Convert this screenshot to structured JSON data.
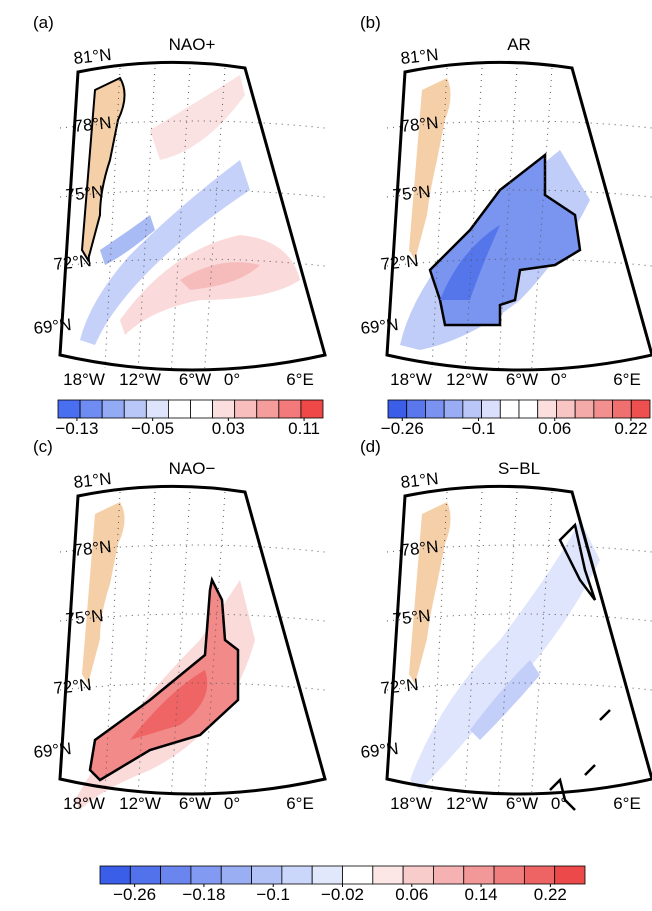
{
  "panels": [
    {
      "label": "(a)",
      "title": "NAO+",
      "lat_labels": [
        "81°N",
        "78°N",
        "75°N",
        "72°N",
        "69°N"
      ],
      "lon_labels": [
        "18°W",
        "12°W",
        "6°W",
        "0°",
        "6°E"
      ]
    },
    {
      "label": "(b)",
      "title": "AR",
      "lat_labels": [
        "81°N",
        "78°N",
        "75°N",
        "72°N",
        "69°N"
      ],
      "lon_labels": [
        "18°W",
        "12°W",
        "6°W",
        "0°",
        "6°E"
      ]
    },
    {
      "label": "(c)",
      "title": "NAO−",
      "lat_labels": [
        "81°N",
        "78°N",
        "75°N",
        "72°N",
        "69°N"
      ],
      "lon_labels": [
        "18°W",
        "12°W",
        "6°W",
        "0°",
        "6°E"
      ]
    },
    {
      "label": "(d)",
      "title": "S−BL",
      "lat_labels": [
        "81°N",
        "78°N",
        "75°N",
        "72°N",
        "69°N"
      ],
      "lon_labels": [
        "18°W",
        "12°W",
        "6°W",
        "0°",
        "6°E"
      ]
    }
  ],
  "colorbars": [
    {
      "range": [
        -0.15,
        0.13
      ],
      "colors": [
        "#4a6ef0",
        "#6e8cf2",
        "#93aaf5",
        "#b8c7f8",
        "#dde4fb",
        "#ffffff",
        "#ffffff",
        "#fbdede",
        "#f8bdbd",
        "#f59c9c",
        "#f27a7a",
        "#f04848"
      ],
      "ticks": [
        {
          "value": -0.13,
          "label": "−0.13"
        },
        {
          "value": -0.05,
          "label": "−0.05"
        },
        0.03,
        0.11
      ]
    },
    {
      "range": [
        -0.29,
        0.26
      ],
      "colors": [
        "#3a5ee8",
        "#5a78ec",
        "#7a92f0",
        "#9aacf4",
        "#bac6f8",
        "#dae0fb",
        "#ffffff",
        "#ffffff",
        "#fbdede",
        "#f8c4c4",
        "#f5aaaa",
        "#f29090",
        "#f07070",
        "#ee5050"
      ],
      "ticks": [
        {
          "value": -0.26,
          "label": "−0.26"
        },
        {
          "value": -0.1,
          "label": "−0.1"
        },
        0.06,
        0.22
      ]
    },
    {
      "range": [
        -0.3,
        0.26
      ],
      "colors": [
        "#3a5ee8",
        "#5272eb",
        "#6a86ee",
        "#829af1",
        "#9aaef4",
        "#b2c2f7",
        "#cad6fa",
        "#e2e8fc",
        "#ffffff",
        "#fde6e6",
        "#f9cccc",
        "#f6b2b2",
        "#f39898",
        "#f07e7e",
        "#ee6464",
        "#ec4a4a"
      ],
      "ticks": [
        {
          "value": -0.26,
          "label": "−0.26"
        },
        {
          "value": -0.18,
          "label": "−0.18"
        },
        {
          "value": -0.1,
          "label": "−0.1"
        },
        {
          "value": -0.02,
          "label": "−0.02"
        },
        0.06,
        0.14,
        0.22
      ]
    }
  ]
}
